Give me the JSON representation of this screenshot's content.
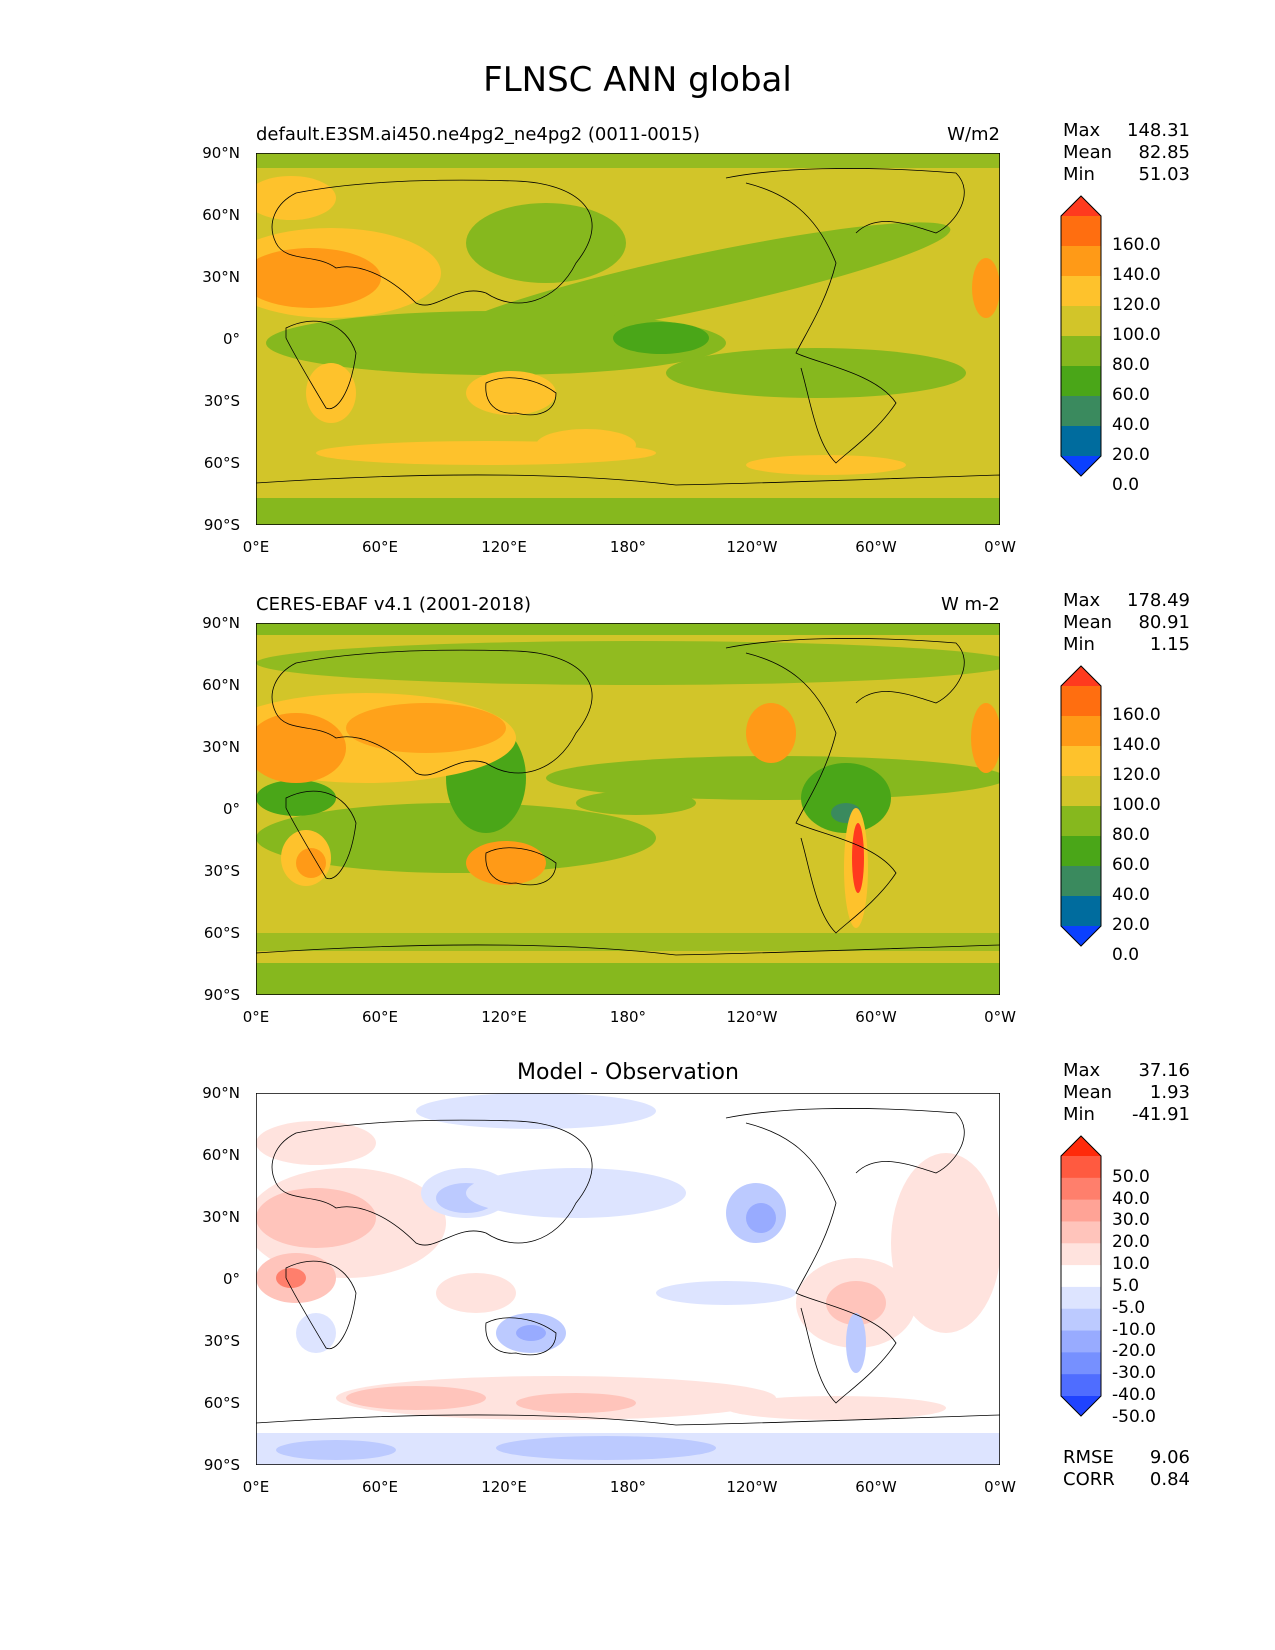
{
  "figure_title": "FLNSC ANN global",
  "lat_ticks": [
    "90°N",
    "60°N",
    "30°N",
    "0°",
    "30°S",
    "60°S",
    "90°S"
  ],
  "lon_ticks": [
    "0°E",
    "60°E",
    "120°E",
    "180°",
    "120°W",
    "60°W",
    "0°W"
  ],
  "panels": [
    {
      "id": "model",
      "title_left": "default.E3SM.ai450.ne4pg2_ne4pg2 (0011-0015)",
      "title_right": "W/m2",
      "stats": [
        {
          "label": "Max",
          "value": "148.31"
        },
        {
          "label": "Mean",
          "value": "82.85"
        },
        {
          "label": "Min",
          "value": "51.03"
        }
      ],
      "colorbar": {
        "labels": [
          "160.0",
          "140.0",
          "120.0",
          "100.0",
          "80.0",
          "60.0",
          "40.0",
          "20.0",
          "0.0"
        ],
        "colors": [
          "#ff3a1e",
          "#ff6e10",
          "#ff9a17",
          "#fec22c",
          "#d2c529",
          "#86b81e",
          "#4aa618",
          "#3a8a5e",
          "#006c9e",
          "#0a40ff"
        ]
      }
    },
    {
      "id": "obs",
      "title_left": "CERES-EBAF v4.1 (2001-2018)",
      "title_right": "W m-2",
      "stats": [
        {
          "label": "Max",
          "value": "178.49"
        },
        {
          "label": "Mean",
          "value": "80.91"
        },
        {
          "label": "Min",
          "value": "1.15"
        }
      ],
      "colorbar": {
        "labels": [
          "160.0",
          "140.0",
          "120.0",
          "100.0",
          "80.0",
          "60.0",
          "40.0",
          "20.0",
          "0.0"
        ],
        "colors": [
          "#ff3a1e",
          "#ff6e10",
          "#ff9a17",
          "#fec22c",
          "#d2c529",
          "#86b81e",
          "#4aa618",
          "#3a8a5e",
          "#006c9e",
          "#0a40ff"
        ]
      }
    },
    {
      "id": "diff",
      "title_center": "Model - Observation",
      "stats": [
        {
          "label": "Max",
          "value": "37.16"
        },
        {
          "label": "Mean",
          "value": "1.93"
        },
        {
          "label": "Min",
          "value": "-41.91"
        }
      ],
      "extra_stats": [
        {
          "label": "RMSE",
          "value": "9.06"
        },
        {
          "label": "CORR",
          "value": "0.84"
        }
      ],
      "colorbar": {
        "labels": [
          "50.0",
          "40.0",
          "30.0",
          "20.0",
          "10.0",
          "5.0",
          "-5.0",
          "-10.0",
          "-20.0",
          "-30.0",
          "-40.0",
          "-50.0"
        ],
        "colors": [
          "#ff2a0a",
          "#ff5a40",
          "#ff7f6c",
          "#ffa396",
          "#ffc4bb",
          "#ffe3de",
          "#ffffff",
          "#dde4ff",
          "#bccaff",
          "#98abff",
          "#7690ff",
          "#4f6dff",
          "#1f43ff"
        ]
      }
    }
  ]
}
